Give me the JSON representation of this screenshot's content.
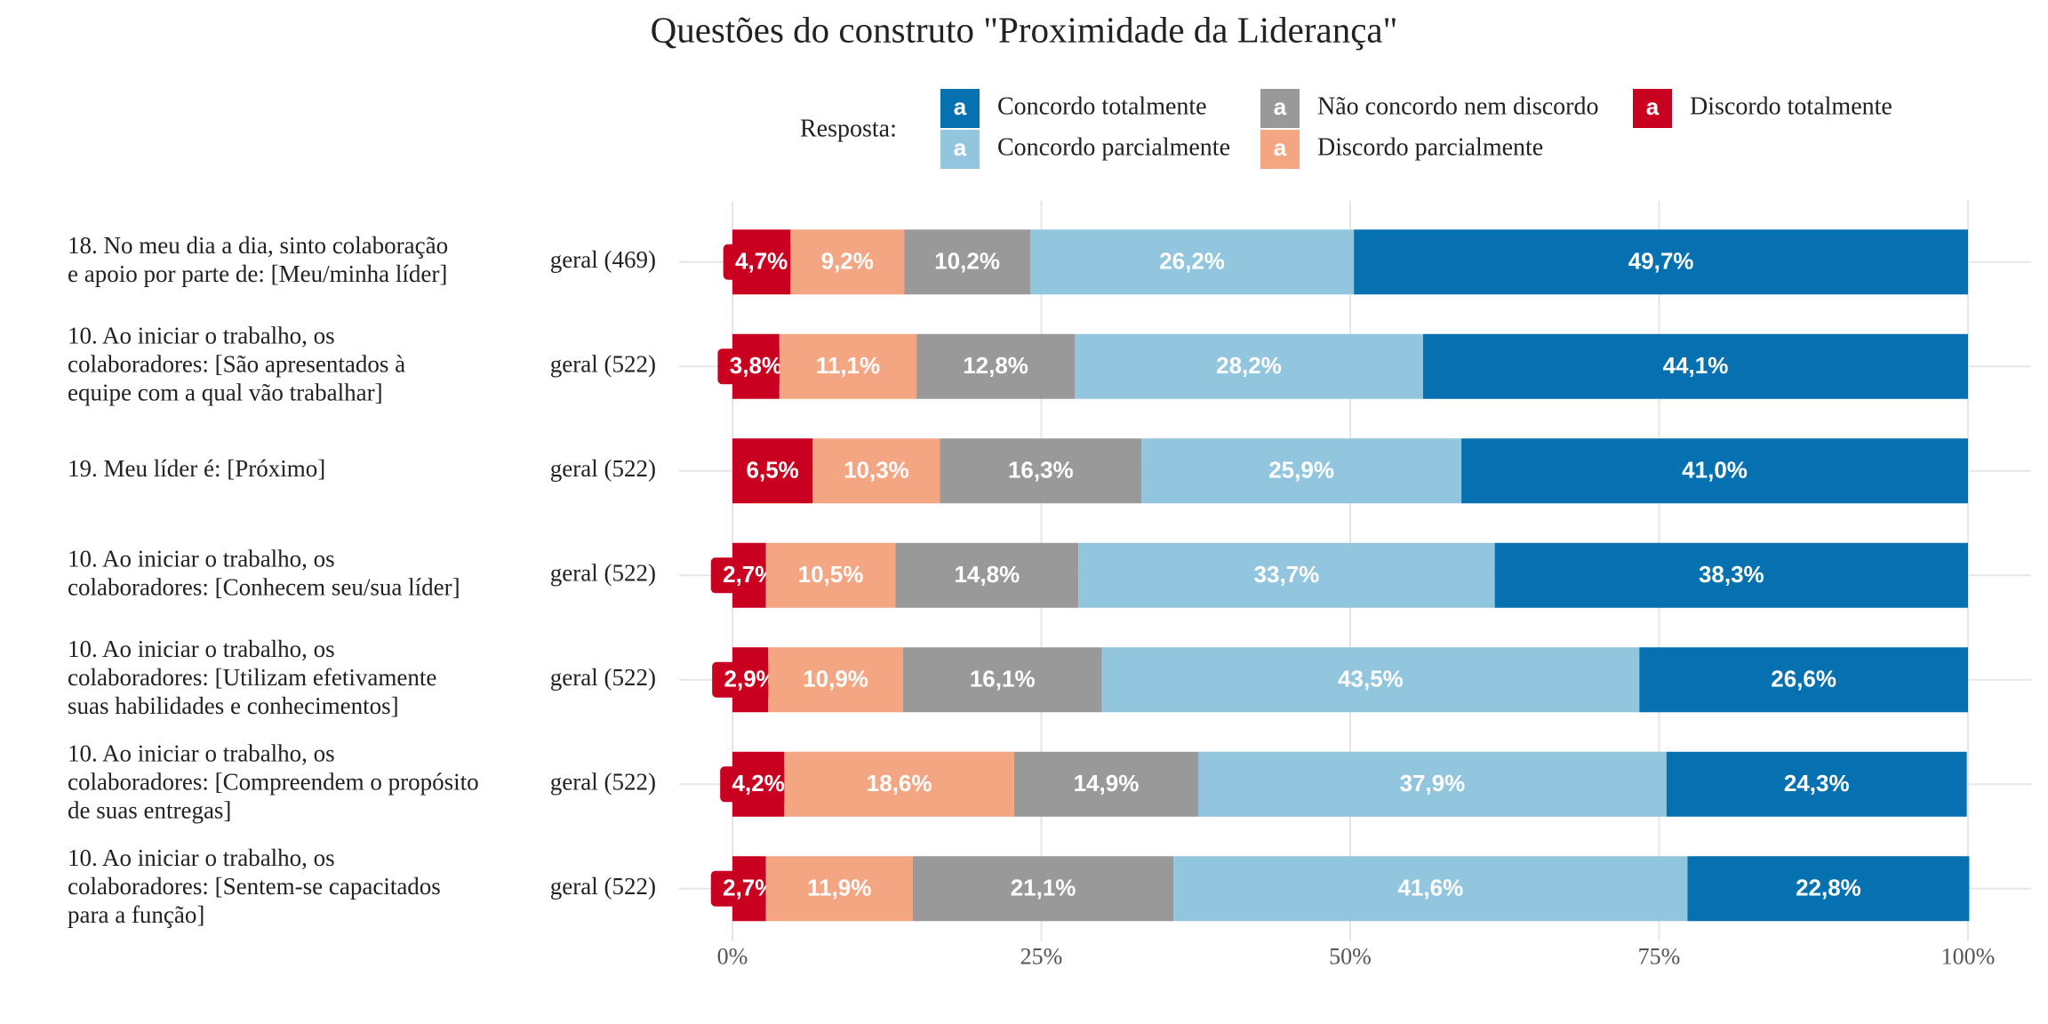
{
  "chart_data": {
    "type": "stacked-barh",
    "title": "Questões do construto \"Proximidade da Liderança\"",
    "legend_title": "Resposta:",
    "legend_key_text": "a",
    "categories": [
      [
        "18. No meu dia a dia, sinto colaboração",
        "e apoio por parte de: [Meu/minha líder]"
      ],
      [
        "10. Ao iniciar o trabalho, os",
        "colaboradores: [São apresentados à",
        "equipe com a qual vão trabalhar]"
      ],
      [
        "19. Meu líder é: [Próximo]"
      ],
      [
        "10. Ao iniciar o trabalho, os",
        "colaboradores: [Conhecem seu/sua líder]"
      ],
      [
        "10. Ao iniciar o trabalho, os",
        "colaboradores: [Utilizam efetivamente",
        "suas habilidades e conhecimentos]"
      ],
      [
        "10. Ao iniciar o trabalho, os",
        "colaboradores: [Compreendem o propósito",
        "de suas entregas]"
      ],
      [
        "10. Ao iniciar o trabalho, os",
        "colaboradores: [Sentem-se capacitados",
        "para a função]"
      ]
    ],
    "row_labels": [
      "geral (469)",
      "geral (522)",
      "geral (522)",
      "geral (522)",
      "geral (522)",
      "geral (522)",
      "geral (522)"
    ],
    "series": [
      {
        "name": "Concordo totalmente",
        "color": "#0571b0",
        "values": [
          49.7,
          44.1,
          41.0,
          38.3,
          26.6,
          24.3,
          22.8
        ],
        "value_labels": [
          "49,7%",
          "44,1%",
          "41,0%",
          "38,3%",
          "26,6%",
          "24,3%",
          "22,8%"
        ]
      },
      {
        "name": "Concordo parcialmente",
        "color": "#92c5de",
        "values": [
          26.2,
          28.2,
          25.9,
          33.7,
          43.5,
          37.9,
          41.6
        ],
        "value_labels": [
          "26,2%",
          "28,2%",
          "25,9%",
          "33,7%",
          "43,5%",
          "37,9%",
          "41,6%"
        ]
      },
      {
        "name": "Não concordo nem discordo",
        "color": "#999999",
        "values": [
          10.2,
          12.8,
          16.3,
          14.8,
          16.1,
          14.9,
          21.1
        ],
        "value_labels": [
          "10,2%",
          "12,8%",
          "16,3%",
          "14,8%",
          "16,1%",
          "14,9%",
          "21,1%"
        ]
      },
      {
        "name": "Discordo parcialmente",
        "color": "#f4a582",
        "values": [
          9.2,
          11.1,
          10.3,
          10.5,
          10.9,
          18.6,
          11.9
        ],
        "value_labels": [
          "9,2%",
          "11,1%",
          "10,3%",
          "10,5%",
          "10,9%",
          "18,6%",
          "11,9%"
        ]
      },
      {
        "name": "Discordo totalmente",
        "color": "#ca0020",
        "values": [
          4.7,
          3.8,
          6.5,
          2.7,
          2.9,
          4.2,
          2.7
        ],
        "value_labels": [
          "4,7%",
          "3,8%",
          "6,5%",
          "2,7%",
          "2,9%",
          "4,2%",
          "2,7%"
        ]
      }
    ],
    "xlim": [
      0,
      100
    ],
    "xticks": [
      {
        "value": 0,
        "label": "0%"
      },
      {
        "value": 25,
        "label": "25%"
      },
      {
        "value": 50,
        "label": "50%"
      },
      {
        "value": 75,
        "label": "75%"
      },
      {
        "value": 100,
        "label": "100%"
      }
    ],
    "grid": true,
    "legend_position": "top"
  }
}
